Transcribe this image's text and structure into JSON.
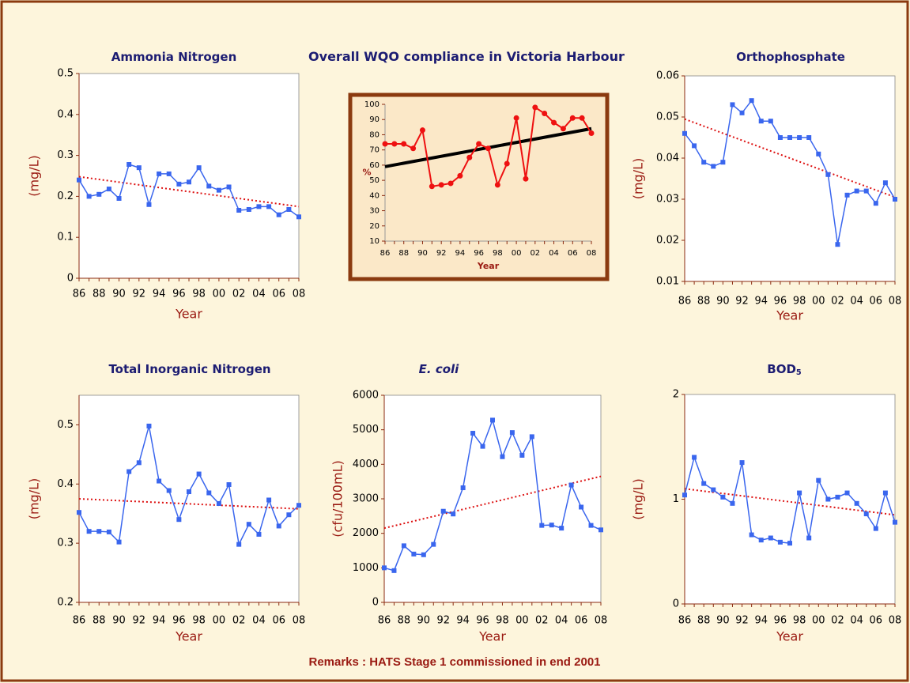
{
  "chart_data": [
    {
      "type": "line",
      "title": "Ammonia Nitrogen",
      "x_label": "Year",
      "y_label": "(mg/L)",
      "categories": [
        "86",
        null,
        "88",
        null,
        "90",
        null,
        "92",
        null,
        "94",
        null,
        "96",
        null,
        "98",
        null,
        "00",
        null,
        "02",
        null,
        "04",
        null,
        "06",
        null,
        "08"
      ],
      "ylim": [
        0,
        0.5
      ],
      "yticks": [
        0,
        0.1,
        0.2,
        0.3,
        0.4,
        0.5
      ],
      "marker": "square",
      "series": [
        {
          "color": "#3a66ee",
          "values": [
            0.24,
            0.2,
            0.205,
            0.218,
            0.195,
            0.278,
            0.27,
            0.18,
            0.255,
            0.255,
            0.23,
            0.235,
            0.27,
            0.225,
            0.215,
            0.223,
            0.166,
            0.168,
            0.175,
            0.175,
            0.155,
            0.168,
            0.15
          ]
        }
      ],
      "trend": {
        "color": "#dd1111",
        "style": "dotted",
        "values": [
          0.248,
          0.175
        ]
      }
    },
    {
      "type": "line",
      "title": "Overall WQO compliance in Victoria Harbour",
      "x_label": "Year",
      "y_label": "%",
      "categories": [
        "86",
        null,
        "88",
        null,
        "90",
        null,
        "92",
        null,
        "94",
        null,
        "96",
        null,
        "98",
        null,
        "00",
        null,
        "02",
        null,
        "04",
        null,
        "06",
        null,
        "08"
      ],
      "ylim": [
        10,
        100
      ],
      "yticks": [
        10,
        20,
        30,
        40,
        50,
        60,
        70,
        80,
        90,
        100
      ],
      "marker": "circle",
      "series": [
        {
          "color": "#ee1111",
          "values": [
            74,
            74,
            74,
            71,
            83,
            46,
            47,
            48,
            53,
            65,
            74,
            71,
            47,
            61,
            91,
            51,
            98,
            94,
            88,
            84,
            91,
            91,
            81
          ]
        }
      ],
      "trend": {
        "color": "#000000",
        "style": "solid",
        "values": [
          59,
          84
        ]
      }
    },
    {
      "type": "line",
      "title": "Orthophosphate",
      "x_label": "Year",
      "y_label": "(mg/L)",
      "categories": [
        "86",
        null,
        "88",
        null,
        "90",
        null,
        "92",
        null,
        "94",
        null,
        "96",
        null,
        "98",
        null,
        "00",
        null,
        "02",
        null,
        "04",
        null,
        "06",
        null,
        "08"
      ],
      "ylim": [
        0.01,
        0.06
      ],
      "yticks": [
        0.01,
        0.02,
        0.03,
        0.04,
        0.05,
        0.06
      ],
      "marker": "square",
      "series": [
        {
          "color": "#3a66ee",
          "values": [
            0.046,
            0.043,
            0.039,
            0.038,
            0.039,
            0.053,
            0.051,
            0.054,
            0.049,
            0.049,
            0.045,
            0.045,
            0.045,
            0.045,
            0.041,
            0.036,
            0.019,
            0.031,
            0.032,
            0.032,
            0.029,
            0.034,
            0.03
          ]
        }
      ],
      "trend": {
        "color": "#dd1111",
        "style": "dotted",
        "values": [
          0.0495,
          0.0305
        ]
      }
    },
    {
      "type": "line",
      "title": "Total Inorganic Nitrogen",
      "x_label": "Year",
      "y_label": "(mg/L)",
      "categories": [
        "86",
        null,
        "88",
        null,
        "90",
        null,
        "92",
        null,
        "94",
        null,
        "96",
        null,
        "98",
        null,
        "00",
        null,
        "02",
        null,
        "04",
        null,
        "06",
        null,
        "08"
      ],
      "ylim": [
        0.2,
        0.55
      ],
      "yticks": [
        0.2,
        0.3,
        0.4,
        0.5
      ],
      "marker": "square",
      "series": [
        {
          "color": "#3a66ee",
          "values": [
            0.352,
            0.32,
            0.32,
            0.319,
            0.302,
            0.421,
            0.436,
            0.498,
            0.405,
            0.389,
            0.34,
            0.387,
            0.417,
            0.385,
            0.367,
            0.399,
            0.298,
            0.332,
            0.315,
            0.373,
            0.329,
            0.348,
            0.364
          ]
        }
      ],
      "trend": {
        "color": "#dd1111",
        "style": "dotted",
        "values": [
          0.375,
          0.358
        ]
      }
    },
    {
      "type": "line",
      "title": "E. coli",
      "title_italic": true,
      "x_label": "Year",
      "y_label": "(cfu/100mL)",
      "categories": [
        "86",
        null,
        "88",
        null,
        "90",
        null,
        "92",
        null,
        "94",
        null,
        "96",
        null,
        "98",
        null,
        "00",
        null,
        "02",
        null,
        "04",
        null,
        "06",
        null,
        "08"
      ],
      "ylim": [
        0,
        6000
      ],
      "yticks": [
        0,
        1000,
        2000,
        3000,
        4000,
        5000,
        6000
      ],
      "marker": "square",
      "series": [
        {
          "color": "#3a66ee",
          "values": [
            1000,
            920,
            1640,
            1400,
            1380,
            1680,
            2640,
            2560,
            3320,
            4900,
            4520,
            5280,
            4220,
            4920,
            4260,
            4800,
            2230,
            2240,
            2150,
            3400,
            2760,
            2230,
            2100
          ]
        }
      ],
      "trend": {
        "color": "#dd1111",
        "style": "dotted",
        "values": [
          2150,
          3650
        ]
      }
    },
    {
      "type": "line",
      "title": "BOD",
      "title_subscript": "5",
      "x_label": "Year",
      "y_label": "(mg/L)",
      "categories": [
        "86",
        null,
        "88",
        null,
        "90",
        null,
        "92",
        null,
        "94",
        null,
        "96",
        null,
        "98",
        null,
        "00",
        null,
        "02",
        null,
        "04",
        null,
        "06",
        null,
        "08"
      ],
      "ylim": [
        0,
        2
      ],
      "yticks": [
        0,
        1,
        2
      ],
      "marker": "square",
      "series": [
        {
          "color": "#3a66ee",
          "values": [
            1.04,
            1.4,
            1.15,
            1.09,
            1.02,
            0.96,
            1.35,
            0.66,
            0.61,
            0.63,
            0.59,
            0.58,
            1.06,
            0.63,
            1.18,
            1.0,
            1.02,
            1.06,
            0.96,
            0.86,
            0.72,
            1.06,
            0.78
          ]
        }
      ],
      "trend": {
        "color": "#dd1111",
        "style": "dotted",
        "values": [
          1.1,
          0.85
        ]
      }
    }
  ],
  "remarks": "Remarks : HATS Stage 1 commissioned in end 2001"
}
